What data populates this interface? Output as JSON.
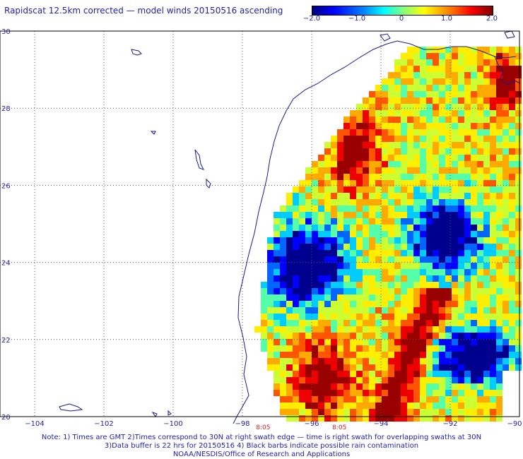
{
  "title": "Rapidscat 12.5km corrected — model winds 20150516 ascending",
  "colorbar": {
    "ticks": [
      "−2.0",
      "−1.0",
      "0",
      "1.0",
      "2.0"
    ],
    "tick_values": [
      -2.0,
      -1.0,
      0,
      1.0,
      2.0
    ],
    "range": [
      -2.0,
      2.0
    ],
    "colors": [
      "#000080",
      "#0000ff",
      "#00ffff",
      "#ffff00",
      "#ff0000",
      "#800000"
    ]
  },
  "map": {
    "lon_labels": [
      "−104",
      "−102",
      "−100",
      "−98",
      "−96",
      "−94",
      "−92",
      "−90"
    ],
    "lon_values": [
      -104,
      -102,
      -100,
      -98,
      -96,
      -94,
      -92,
      -90
    ],
    "lat_labels": [
      "20",
      "22",
      "24",
      "26",
      "28",
      "30"
    ],
    "lat_values": [
      20,
      22,
      24,
      26,
      28,
      30
    ],
    "time_labels": [
      {
        "text": "8:05",
        "lon": -97.4
      },
      {
        "text": "8:05",
        "lon": -95.2
      }
    ],
    "coast_color": "#1a1a8c",
    "grid": "dotted"
  },
  "notes": {
    "line1": "Note: 1) Times are GMT 2)Times correspond to 30N at right swath edge — time is right swath for overlapping swaths at 30N",
    "line2": "3)Data buffer is 22 hrs for 20150516 4) Black barbs indicate possible rain contamination",
    "line3": "NOAA/NESDIS/Office of Research and Applications"
  }
}
